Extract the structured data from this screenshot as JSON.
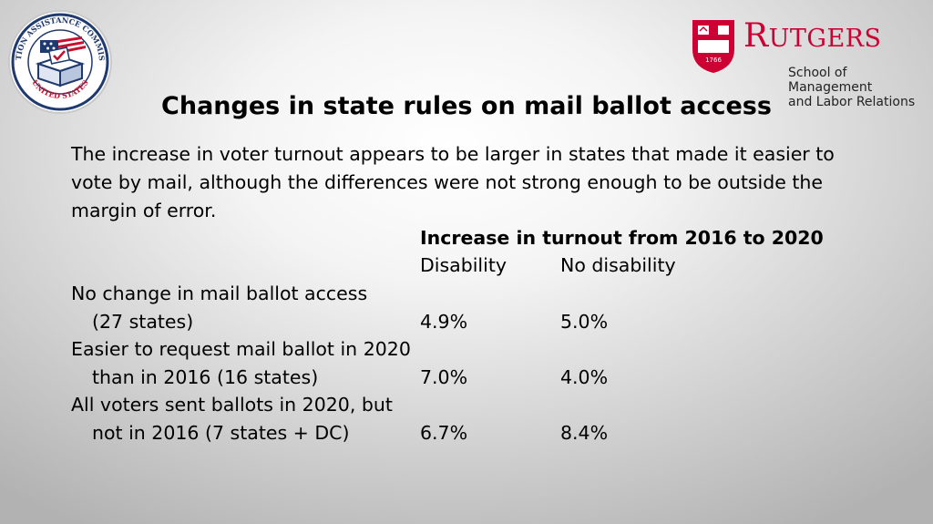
{
  "logos": {
    "eac": {
      "ring_text_top": "ELECTION ASSISTANCE COMMISSION",
      "ring_text_bottom": "UNITED STATES",
      "colors": {
        "navy": "#1f3a6e",
        "red": "#c8102e"
      }
    },
    "rutgers": {
      "wordmark_first": "R",
      "wordmark_rest": "UTGERS",
      "shield_year": "1766",
      "school_line1": "School of Management",
      "school_line2": "and Labor Relations",
      "color": "#cc0033"
    }
  },
  "title": "Changes in state rules on mail ballot access",
  "intro": "The increase in voter turnout appears to be larger in states that made it easier to vote by mail, although the differences were not strong enough to be outside the margin of error.",
  "table": {
    "group_header": "Increase in turnout from 2016 to 2020",
    "columns": [
      "Disability",
      "No disability"
    ],
    "rows": [
      {
        "label_line1": "No change in mail ballot access",
        "label_line2": "(27 states)",
        "values": [
          "4.9%",
          "5.0%"
        ]
      },
      {
        "label_line1": "Easier to request mail ballot in 2020",
        "label_line2": "than in 2016 (16 states)",
        "values": [
          "7.0%",
          "4.0%"
        ]
      },
      {
        "label_line1": "All voters sent ballots in 2020, but",
        "label_line2": "not in 2016 (7 states + DC)",
        "values": [
          "6.7%",
          "8.4%"
        ]
      }
    ]
  }
}
